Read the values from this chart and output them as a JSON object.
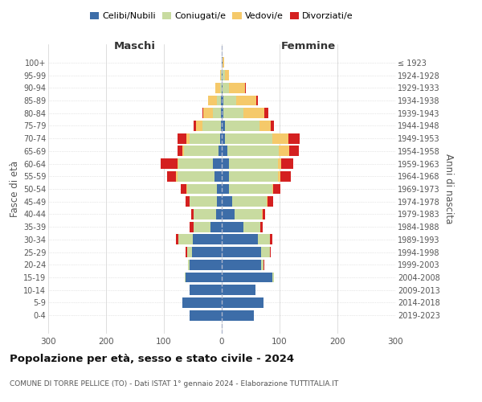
{
  "age_groups_bottom_to_top": [
    "0-4",
    "5-9",
    "10-14",
    "15-19",
    "20-24",
    "25-29",
    "30-34",
    "35-39",
    "40-44",
    "45-49",
    "50-54",
    "55-59",
    "60-64",
    "65-69",
    "70-74",
    "75-79",
    "80-84",
    "85-89",
    "90-94",
    "95-99",
    "100+"
  ],
  "birth_years_bottom_to_top": [
    "2019-2023",
    "2014-2018",
    "2009-2013",
    "2004-2008",
    "1999-2003",
    "1994-1998",
    "1989-1993",
    "1984-1988",
    "1979-1983",
    "1974-1978",
    "1969-1973",
    "1964-1968",
    "1959-1963",
    "1954-1958",
    "1949-1953",
    "1944-1948",
    "1939-1943",
    "1934-1938",
    "1929-1933",
    "1924-1928",
    "≤ 1923"
  ],
  "colors": {
    "celibi": "#3d6da8",
    "coniugati": "#c8dba0",
    "vedovi": "#f5c96a",
    "divorziati": "#d42020"
  },
  "maschi": {
    "celibi": [
      55,
      68,
      55,
      62,
      55,
      52,
      50,
      20,
      10,
      8,
      8,
      12,
      15,
      5,
      3,
      2,
      1,
      1,
      0,
      0,
      0
    ],
    "coniugati": [
      0,
      0,
      0,
      2,
      3,
      8,
      25,
      28,
      38,
      48,
      52,
      65,
      60,
      60,
      52,
      32,
      14,
      8,
      3,
      1,
      0
    ],
    "vedovi": [
      0,
      0,
      0,
      0,
      0,
      0,
      0,
      0,
      0,
      0,
      1,
      2,
      2,
      3,
      6,
      10,
      17,
      14,
      8,
      2,
      0
    ],
    "divorziati": [
      0,
      0,
      0,
      0,
      0,
      2,
      4,
      8,
      5,
      6,
      10,
      15,
      28,
      8,
      15,
      5,
      1,
      0,
      0,
      0,
      0
    ]
  },
  "femmine": {
    "celibi": [
      55,
      72,
      58,
      88,
      68,
      68,
      62,
      38,
      22,
      18,
      12,
      12,
      12,
      10,
      5,
      5,
      3,
      3,
      2,
      1,
      2
    ],
    "coniugati": [
      0,
      0,
      1,
      2,
      4,
      15,
      22,
      28,
      48,
      60,
      75,
      85,
      85,
      88,
      82,
      60,
      35,
      22,
      10,
      4,
      0
    ],
    "vedovi": [
      0,
      0,
      0,
      0,
      0,
      0,
      0,
      0,
      1,
      1,
      2,
      4,
      6,
      18,
      28,
      20,
      35,
      35,
      28,
      8,
      2
    ],
    "divorziati": [
      0,
      0,
      0,
      0,
      2,
      2,
      4,
      5,
      4,
      10,
      12,
      18,
      20,
      18,
      20,
      5,
      8,
      2,
      2,
      0,
      0
    ]
  },
  "xlim": 300,
  "title": "Popolazione per età, sesso e stato civile - 2024",
  "subtitle": "COMUNE DI TORRE PELLICE (TO) - Dati ISTAT 1° gennaio 2024 - Elaborazione TUTTITALIA.IT",
  "ylabel_left": "Fasce di età",
  "ylabel_right": "Anni di nascita",
  "background_color": "#ffffff",
  "grid_color": "#d0d0d0",
  "maschi_label": "Maschi",
  "femmine_label": "Femmine",
  "legend_labels": [
    "Celibi/Nubili",
    "Coniugati/e",
    "Vedovi/e",
    "Divorziati/e"
  ]
}
